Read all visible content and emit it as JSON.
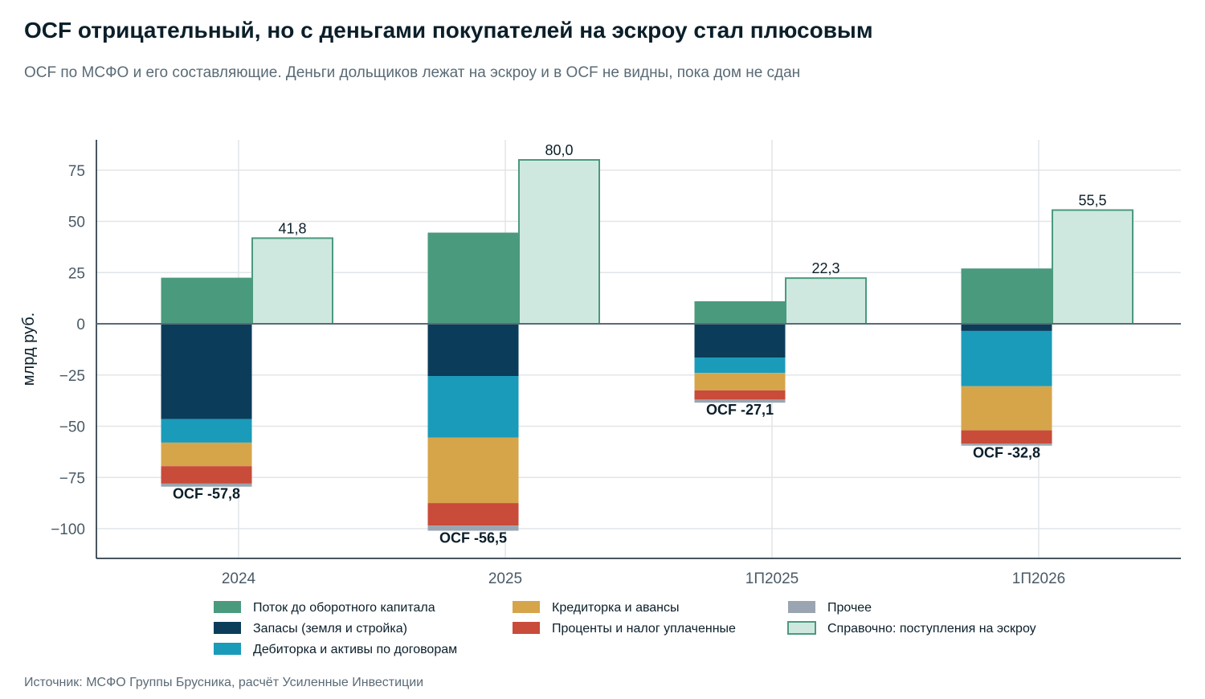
{
  "header": {
    "title": "OCF отрицательный, но с деньгами покупателей на эскроу стал плюсовым",
    "subtitle": "OCF по МСФО и его составляющие. Деньги дольщиков лежат на эскроу и в OCF не видны, пока дом не сдан"
  },
  "source": "Источник: МСФО Группы Брусника, расчёт Усиленные Инвестиции",
  "chart_data": {
    "type": "bar",
    "stacked": true,
    "title": "OCF отрицательный, но с деньгами покупателей на эскроу стал плюсовым",
    "ylabel": "млрд руб.",
    "xlabel": "",
    "ylim": [
      -115,
      90
    ],
    "yticks": [
      75,
      50,
      25,
      0,
      -25,
      -50,
      -75,
      -100
    ],
    "ytick_labels": [
      "75",
      "50",
      "25",
      "0",
      "−25",
      "−50",
      "−75",
      "−100"
    ],
    "grid": true,
    "legend_position": "bottom",
    "categories": [
      "2024",
      "2025",
      "1П2025",
      "1П2026"
    ],
    "series": [
      {
        "name": "Поток до оборотного капитала",
        "color": "#4a9a7e",
        "values": [
          22.5,
          44.5,
          11.0,
          27.0
        ]
      },
      {
        "name": "Запасы (земля и стройка)",
        "color": "#0b3d5a",
        "values": [
          -46.5,
          -25.5,
          -16.5,
          -3.5
        ]
      },
      {
        "name": "Дебиторка и активы по договорам",
        "color": "#1a9bba",
        "values": [
          -11.5,
          -30.0,
          -7.5,
          -27.0
        ]
      },
      {
        "name": "Кредиторка и авансы",
        "color": "#d6a54a",
        "values": [
          -11.5,
          -32.0,
          -8.5,
          -21.5
        ]
      },
      {
        "name": "Проценты и налог уплаченные",
        "color": "#c94b3a",
        "values": [
          -8.5,
          -11.0,
          -4.5,
          -6.5
        ]
      },
      {
        "name": "Прочее",
        "color": "#9aa5b1",
        "values": [
          -1.5,
          -2.5,
          -1.5,
          -1.0
        ]
      }
    ],
    "reference_series": {
      "name": "Справочно: поступления на эскроу",
      "fill": "#cfe8df",
      "stroke": "#4a9a7e",
      "values": [
        41.8,
        80.0,
        22.3,
        55.5
      ],
      "labels": [
        "41,8",
        "80,0",
        "22,3",
        "55,5"
      ]
    },
    "ocf_labels": [
      "OCF -57,8",
      "OCF -56,5",
      "OCF -27,1",
      "OCF -32,8"
    ]
  }
}
